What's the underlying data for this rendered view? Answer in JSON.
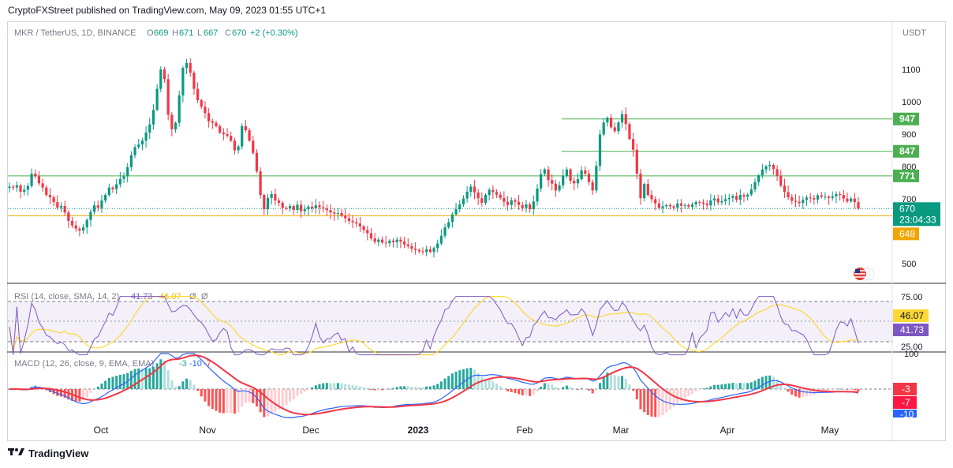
{
  "header": {
    "text": "CryptoFXStreet published on TradingView.com, May 09, 2023 01:55 UTC+1"
  },
  "footer": {
    "brand": "TradingView",
    "logo": "tradingview-logo-icon"
  },
  "legend": {
    "symbol": "MKR / TetherUS, 1D, BINANCE",
    "o_label": "O",
    "o": "669",
    "h_label": "H",
    "h": "671",
    "l_label": "L",
    "l": "667",
    "c_label": "C",
    "c": "670",
    "change": "+2 (+0.30%)",
    "currency": "USDT"
  },
  "colors": {
    "up": "#089981",
    "down": "#f23645",
    "level": "#4caf50",
    "support": "#f0a500",
    "rsi": "#7e57c2",
    "rsi_ma": "#fdd835",
    "macd": "#2962ff",
    "signal": "#f23645"
  },
  "chart_data": [
    {
      "type": "candlestick",
      "title": "MKR / TetherUS, 1D, BINANCE",
      "ylim": [
        460,
        1180
      ],
      "y_ticks": [
        500,
        700,
        800,
        900,
        1000,
        1100
      ],
      "x_ticks": [
        "Oct",
        "Nov",
        "Dec",
        "2023",
        "Feb",
        "Mar",
        "Apr",
        "May"
      ],
      "close_series": [
        738,
        735,
        742,
        722,
        728,
        740,
        778,
        770,
        748,
        735,
        712,
        705,
        690,
        673,
        678,
        658,
        632,
        618,
        608,
        602,
        612,
        635,
        660,
        680,
        672,
        695,
        712,
        735,
        730,
        745,
        762,
        770,
        798,
        835,
        860,
        868,
        880,
        905,
        930,
        975,
        1040,
        1100,
        1070,
        960,
        915,
        935,
        1020,
        1105,
        1120,
        1090,
        1040,
        1005,
        985,
        965,
        940,
        935,
        925,
        905,
        900,
        895,
        880,
        850,
        862,
        925,
        912,
        880,
        842,
        785,
        712,
        668,
        703,
        715,
        695,
        688,
        672,
        670,
        678,
        666,
        682,
        662,
        668,
        676,
        671,
        680,
        674,
        670,
        665,
        658,
        654,
        656,
        648,
        640,
        632,
        628,
        624,
        615,
        604,
        594,
        578,
        567,
        574,
        565,
        563,
        571,
        566,
        574,
        568,
        559,
        554,
        546,
        542,
        538,
        536,
        544,
        536,
        548,
        562,
        586,
        612,
        628,
        652,
        668,
        683,
        701,
        722,
        738,
        720,
        702,
        688,
        712,
        728,
        721,
        713,
        703,
        691,
        681,
        696,
        691,
        681,
        672,
        683,
        668,
        692,
        732,
        777,
        791,
        758,
        747,
        726,
        742,
        772,
        791,
        756,
        748,
        761,
        788,
        778,
        752,
        726,
        802,
        899,
        936,
        951,
        921,
        909,
        936,
        962,
        931,
        885,
        852,
        778,
        702,
        746,
        712,
        699,
        686,
        672,
        677,
        681,
        677,
        673,
        686,
        679,
        681,
        676,
        683,
        690,
        689,
        685,
        680,
        695,
        701,
        689,
        693,
        699,
        703,
        709,
        697,
        712,
        707,
        713,
        729,
        752,
        773,
        791,
        801,
        805,
        792,
        772,
        741,
        721,
        705,
        694,
        691,
        687,
        697,
        704,
        702,
        698,
        711,
        706,
        707,
        703,
        708,
        715,
        712,
        701,
        692,
        701,
        690,
        670
      ],
      "levels": [
        {
          "value": 947,
          "label": "947"
        },
        {
          "value": 847,
          "label": "847"
        },
        {
          "value": 771,
          "label": "771"
        }
      ],
      "support": {
        "value": 648,
        "label": "648"
      },
      "last_price": {
        "value": 670,
        "label": "670",
        "countdown": "23:04:33"
      }
    },
    {
      "type": "line",
      "title": "RSI (14, close, SMA, 14, 2)",
      "legend_values": [
        "41.73",
        "46.07",
        "Ø",
        "Ø"
      ],
      "ylim": [
        20,
        80
      ],
      "y_ticks": [
        "75.00",
        "25.00"
      ],
      "bands": [
        70,
        50,
        30
      ],
      "series": [
        {
          "name": "RSI",
          "value_label": "41.73"
        },
        {
          "name": "RSI-based MA",
          "value_label": "46.07"
        }
      ]
    },
    {
      "type": "line",
      "title": "MACD (12, 26, close, 9, EMA, EMA)",
      "legend_values": [
        "-3",
        "-10",
        "-7"
      ],
      "y_ticks": [
        "100"
      ],
      "series": [
        {
          "name": "MACD",
          "value_label": "-10"
        },
        {
          "name": "Signal",
          "value_label": "-7"
        },
        {
          "name": "Histogram",
          "value_label": "-3"
        }
      ]
    }
  ]
}
